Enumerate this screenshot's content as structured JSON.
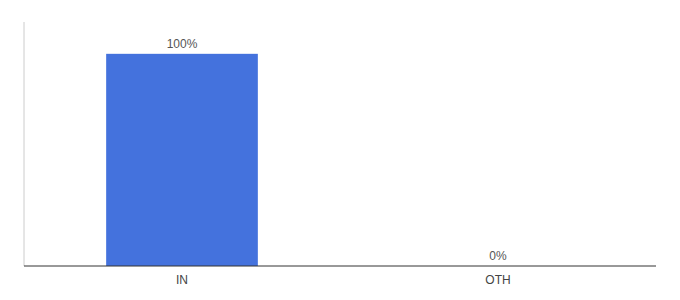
{
  "chart_data": {
    "type": "bar",
    "categories": [
      "IN",
      "OTH"
    ],
    "values": [
      100,
      0
    ],
    "value_labels": [
      "100%",
      "0%"
    ],
    "color": "#4472dd",
    "ylim": [
      0,
      115
    ],
    "grid": false,
    "data_labels": true,
    "tick_labels": "x"
  }
}
